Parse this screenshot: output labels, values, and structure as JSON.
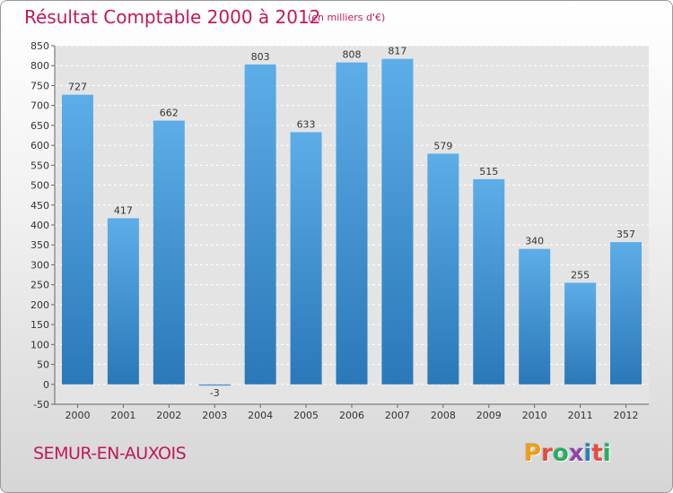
{
  "header": {
    "title": "Résultat Comptable 2000 à 2012",
    "subtitle": "(en milliers d'€)"
  },
  "footer": {
    "city": "SEMUR-EN-AUXOIS",
    "brand": "Proxiti",
    "brand_colors": [
      "#f39c12",
      "#e74c3c",
      "#27ae60",
      "#8e44ad",
      "#2980b9",
      "#e74c3c",
      "#27ae60"
    ]
  },
  "colors": {
    "bar_top": "#5dade8",
    "bar_bottom": "#2a78b8",
    "plot_bg": "#e4e4e4",
    "grid": "#ffffff"
  },
  "chart_data": {
    "type": "bar",
    "title": "Résultat Comptable 2000 à 2012",
    "xlabel": "",
    "ylabel": "",
    "categories": [
      "2000",
      "2001",
      "2002",
      "2003",
      "2004",
      "2005",
      "2006",
      "2007",
      "2008",
      "2009",
      "2010",
      "2011",
      "2012"
    ],
    "values": [
      727,
      417,
      662,
      -3,
      803,
      633,
      808,
      817,
      579,
      515,
      340,
      255,
      357
    ],
    "ylim": [
      -50,
      850
    ],
    "yticks": [
      -50,
      0,
      50,
      100,
      150,
      200,
      250,
      300,
      350,
      400,
      450,
      500,
      550,
      600,
      650,
      700,
      750,
      800,
      850
    ],
    "grid": "dashed horizontal"
  }
}
